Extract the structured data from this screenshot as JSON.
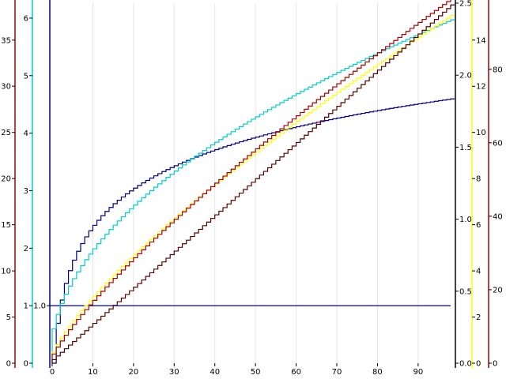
{
  "chart_data": {
    "type": "line",
    "step": true,
    "title": "",
    "xlabel": "",
    "x": {
      "min": 0,
      "max": 98,
      "ticks": [
        0,
        10,
        20,
        30,
        40,
        50,
        60,
        70,
        80,
        90
      ],
      "tick_labels": [
        "0",
        "10",
        "20",
        "30",
        "40",
        "50",
        "60",
        "70",
        "80",
        "90"
      ],
      "grid": true
    },
    "axes": [
      {
        "id": "red",
        "side": "left",
        "color": "#aa0000",
        "min": 0,
        "max": 39,
        "ticks": [
          0,
          5,
          10,
          15,
          20,
          25,
          30,
          35
        ],
        "tick_labels": [
          "0",
          "5",
          "10",
          "15",
          "20",
          "25",
          "30",
          "35"
        ]
      },
      {
        "id": "cyan",
        "side": "left",
        "color": "#00cccc",
        "min": 0,
        "max": 6.26,
        "ticks": [
          0,
          1,
          2,
          3,
          4,
          5,
          6
        ],
        "tick_labels": [
          "0",
          "1",
          "2",
          "3",
          "4",
          "5",
          "6"
        ]
      },
      {
        "id": "navy",
        "side": "left",
        "color": "#000080",
        "min": 0,
        "max": 6.26,
        "ticks": [
          1.0
        ],
        "tick_labels": [
          "1.0"
        ]
      },
      {
        "id": "black",
        "side": "right",
        "color": "#000000",
        "min": 0,
        "max": 2.5,
        "ticks": [
          0,
          0.5,
          1.0,
          1.5,
          2.0,
          2.5
        ],
        "tick_labels": [
          "0.0",
          "0.5",
          "1.0",
          "1.5",
          "2.0",
          "2.5"
        ]
      },
      {
        "id": "yellow",
        "side": "right",
        "color": "#ffff00",
        "min": 0,
        "max": 15.6,
        "ticks": [
          0,
          2,
          4,
          6,
          8,
          10,
          12,
          14
        ],
        "tick_labels": [
          "0",
          "2",
          "4",
          "6",
          "8",
          "10",
          "12",
          "14"
        ]
      },
      {
        "id": "darkred",
        "side": "right",
        "color": "#aa0000",
        "min": 0,
        "max": 98,
        "ticks": [
          0,
          20,
          40,
          60,
          80
        ],
        "tick_labels": [
          "0",
          "20",
          "40",
          "60",
          "80"
        ]
      }
    ],
    "hline": {
      "value": 1.0,
      "axis": "navy",
      "color": "#000080"
    },
    "series": [
      {
        "function": "log",
        "axis": "navy",
        "color": "#000080",
        "n": 99
      },
      {
        "function": "sqrt",
        "axis": "cyan",
        "color": "#00cccc",
        "n": 99
      },
      {
        "function": "x^0.75",
        "axis": "yellow",
        "color": "#ffff00",
        "n": 99
      },
      {
        "function": "x^0.8",
        "axis": "red",
        "color": "#aa0000",
        "n": 99
      },
      {
        "function": "x",
        "axis": "darkred",
        "color": "#550000",
        "n": 99
      }
    ]
  }
}
